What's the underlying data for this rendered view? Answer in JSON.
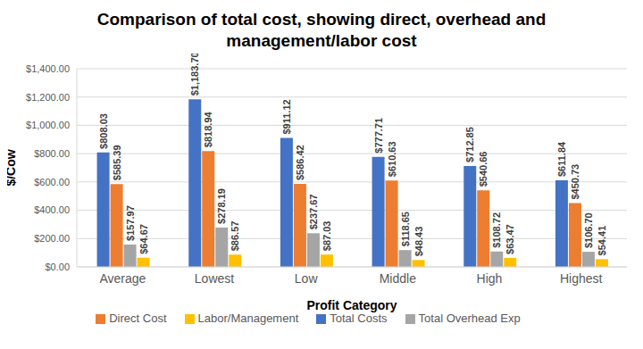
{
  "chart_data": {
    "type": "bar",
    "title": "Comparison of total cost, showing direct, overhead and management/labor cost",
    "x_label": "Profit Category",
    "y_label": "$/Cow",
    "categories": [
      "Average",
      "Lowest",
      "Low",
      "Middle",
      "High",
      "Highest"
    ],
    "series": [
      {
        "name": "Total Costs",
        "color": "#4472c4",
        "values": [
          808.03,
          1183.7,
          911.12,
          777.71,
          712.85,
          611.84
        ],
        "value_labels": [
          "$808.03",
          "$1,183.70",
          "$911.12",
          "$777.71",
          "$712.85",
          "$611.84"
        ]
      },
      {
        "name": "Direct Cost",
        "color": "#ed7d31",
        "values": [
          585.39,
          818.94,
          586.42,
          610.63,
          540.66,
          450.73
        ],
        "value_labels": [
          "$585.39",
          "$818.94",
          "$586.42",
          "$610.63",
          "$540.66",
          "$450.73"
        ]
      },
      {
        "name": "Total Overhead Exp",
        "color": "#a5a5a5",
        "values": [
          157.97,
          278.19,
          237.67,
          118.65,
          108.72,
          106.7
        ],
        "value_labels": [
          "$157.97",
          "$278.19",
          "$237.67",
          "$118.65",
          "$108.72",
          "$106.70"
        ]
      },
      {
        "name": "Labor/Management",
        "color": "#ffc000",
        "values": [
          64.67,
          86.57,
          87.03,
          48.43,
          63.47,
          54.41
        ],
        "value_labels": [
          "$64.67",
          "$86.57",
          "$87.03",
          "$48.43",
          "$63.47",
          "$54.41"
        ]
      }
    ],
    "ylim": [
      0,
      1400
    ],
    "yticks": [
      {
        "value": 0,
        "label": "$0.00"
      },
      {
        "value": 200,
        "label": "$200.00"
      },
      {
        "value": 400,
        "label": "$400.00"
      },
      {
        "value": 600,
        "label": "$600.00"
      },
      {
        "value": 800,
        "label": "$800.00"
      },
      {
        "value": 1000,
        "label": "$1,000.00"
      },
      {
        "value": 1200,
        "label": "$1,200.00"
      },
      {
        "value": 1400,
        "label": "$1,400.00"
      }
    ],
    "grid": true,
    "legend": "bottom",
    "data_labels": true
  }
}
